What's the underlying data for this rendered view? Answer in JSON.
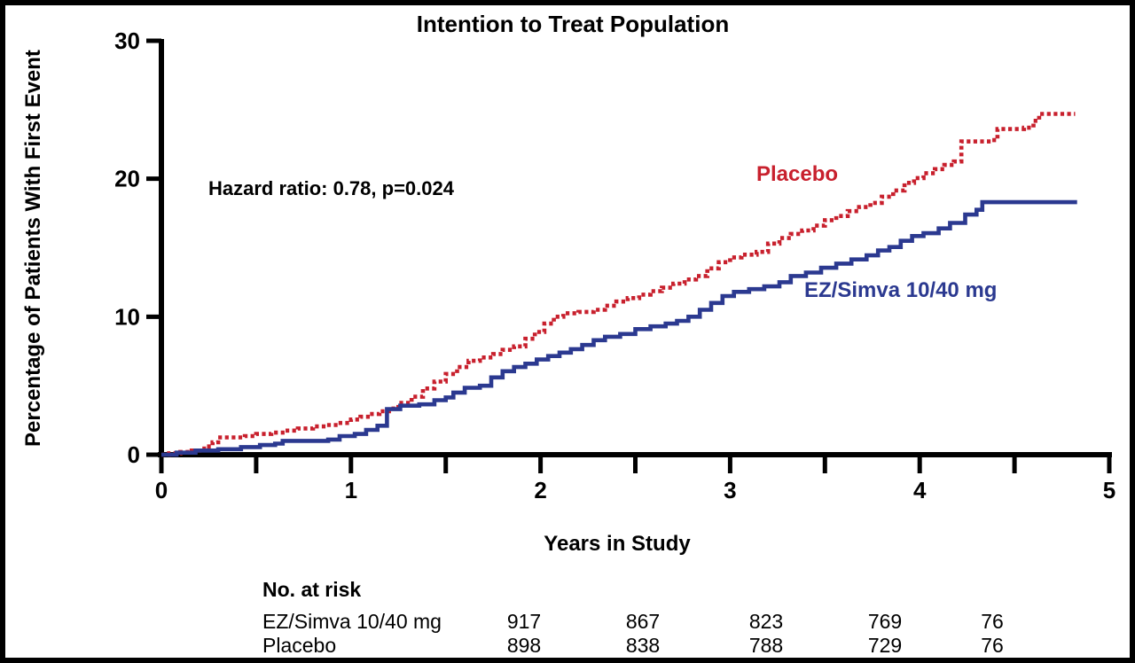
{
  "title": "Intention to Treat Population",
  "annotations": {
    "hazard_ratio": "Hazard ratio: 0.78, p=0.024"
  },
  "colors": {
    "placebo": "#C8202D",
    "ez_simva": "#2B3990",
    "axis": "#000000"
  },
  "chart_data": {
    "type": "line",
    "subtype": "kaplan-meier-step-curves",
    "title": "Intention to Treat Population",
    "xlabel": "Years in Study",
    "ylabel": "Percentage of Patients With First Event",
    "xlim": [
      0,
      5
    ],
    "ylim": [
      0,
      30
    ],
    "xticks_minor": [
      0,
      0.5,
      1,
      1.5,
      2,
      2.5,
      3,
      3.5,
      4,
      4.5,
      5
    ],
    "xtick_labels": [
      "0",
      "1",
      "2",
      "3",
      "4",
      "5"
    ],
    "xtick_label_values": [
      0,
      1,
      2,
      3,
      4,
      5
    ],
    "ytick_labels": [
      "0",
      "10",
      "20",
      "30"
    ],
    "ytick_values": [
      0,
      10,
      20,
      30
    ],
    "grid": false,
    "legend_position": "inline-curve-labels",
    "annotation": "Hazard ratio: 0.78, p=0.024",
    "series": [
      {
        "name": "Placebo",
        "color": "#C8202D",
        "line_style": "dotted",
        "points": [
          [
            0,
            0
          ],
          [
            0.04,
            0.1
          ],
          [
            0.1,
            0.2
          ],
          [
            0.16,
            0.3
          ],
          [
            0.2,
            0.45
          ],
          [
            0.24,
            0.6
          ],
          [
            0.27,
            0.9
          ],
          [
            0.3,
            1.25
          ],
          [
            0.44,
            1.35
          ],
          [
            0.5,
            1.5
          ],
          [
            0.58,
            1.6
          ],
          [
            0.65,
            1.75
          ],
          [
            0.72,
            1.9
          ],
          [
            0.8,
            2.05
          ],
          [
            0.87,
            2.15
          ],
          [
            0.93,
            2.3
          ],
          [
            1.0,
            2.55
          ],
          [
            1.05,
            2.75
          ],
          [
            1.1,
            2.95
          ],
          [
            1.15,
            3.15
          ],
          [
            1.2,
            3.35
          ],
          [
            1.25,
            3.75
          ],
          [
            1.32,
            4.2
          ],
          [
            1.38,
            4.8
          ],
          [
            1.44,
            5.3
          ],
          [
            1.5,
            5.85
          ],
          [
            1.56,
            6.35
          ],
          [
            1.62,
            6.8
          ],
          [
            1.68,
            7.05
          ],
          [
            1.75,
            7.3
          ],
          [
            1.8,
            7.6
          ],
          [
            1.86,
            7.85
          ],
          [
            1.92,
            8.4
          ],
          [
            1.97,
            8.9
          ],
          [
            2.02,
            9.5
          ],
          [
            2.07,
            10.0
          ],
          [
            2.12,
            10.25
          ],
          [
            2.2,
            10.35
          ],
          [
            2.28,
            10.5
          ],
          [
            2.34,
            10.8
          ],
          [
            2.4,
            11.1
          ],
          [
            2.46,
            11.35
          ],
          [
            2.52,
            11.6
          ],
          [
            2.58,
            11.85
          ],
          [
            2.64,
            12.1
          ],
          [
            2.7,
            12.4
          ],
          [
            2.76,
            12.7
          ],
          [
            2.82,
            12.95
          ],
          [
            2.88,
            13.5
          ],
          [
            2.94,
            13.95
          ],
          [
            3.0,
            14.3
          ],
          [
            3.06,
            14.5
          ],
          [
            3.14,
            14.7
          ],
          [
            3.2,
            15.3
          ],
          [
            3.26,
            15.7
          ],
          [
            3.32,
            16.0
          ],
          [
            3.38,
            16.25
          ],
          [
            3.44,
            16.6
          ],
          [
            3.5,
            17.0
          ],
          [
            3.56,
            17.3
          ],
          [
            3.62,
            17.65
          ],
          [
            3.68,
            17.95
          ],
          [
            3.74,
            18.25
          ],
          [
            3.8,
            18.7
          ],
          [
            3.86,
            19.15
          ],
          [
            3.92,
            19.7
          ],
          [
            3.97,
            20.05
          ],
          [
            4.02,
            20.4
          ],
          [
            4.08,
            20.7
          ],
          [
            4.13,
            21.0
          ],
          [
            4.18,
            21.25
          ],
          [
            4.22,
            22.7
          ],
          [
            4.38,
            22.8
          ],
          [
            4.41,
            23.6
          ],
          [
            4.55,
            23.7
          ],
          [
            4.6,
            24.2
          ],
          [
            4.63,
            24.7
          ],
          [
            4.82,
            24.7
          ]
        ]
      },
      {
        "name": "EZ/Simva 10/40 mg",
        "color": "#2B3990",
        "line_style": "solid",
        "points": [
          [
            0,
            0
          ],
          [
            0.08,
            0.15
          ],
          [
            0.18,
            0.3
          ],
          [
            0.3,
            0.4
          ],
          [
            0.42,
            0.55
          ],
          [
            0.52,
            0.7
          ],
          [
            0.6,
            0.8
          ],
          [
            0.64,
            1.0
          ],
          [
            0.88,
            1.1
          ],
          [
            0.94,
            1.35
          ],
          [
            1.02,
            1.5
          ],
          [
            1.08,
            1.8
          ],
          [
            1.14,
            2.1
          ],
          [
            1.19,
            3.3
          ],
          [
            1.26,
            3.55
          ],
          [
            1.36,
            3.65
          ],
          [
            1.44,
            3.95
          ],
          [
            1.5,
            4.15
          ],
          [
            1.54,
            4.5
          ],
          [
            1.6,
            4.85
          ],
          [
            1.68,
            5.0
          ],
          [
            1.74,
            5.6
          ],
          [
            1.8,
            6.05
          ],
          [
            1.86,
            6.35
          ],
          [
            1.92,
            6.6
          ],
          [
            1.98,
            6.9
          ],
          [
            2.04,
            7.15
          ],
          [
            2.1,
            7.4
          ],
          [
            2.16,
            7.65
          ],
          [
            2.22,
            7.95
          ],
          [
            2.28,
            8.3
          ],
          [
            2.34,
            8.55
          ],
          [
            2.42,
            8.75
          ],
          [
            2.5,
            9.1
          ],
          [
            2.58,
            9.3
          ],
          [
            2.66,
            9.5
          ],
          [
            2.72,
            9.7
          ],
          [
            2.78,
            10.0
          ],
          [
            2.84,
            10.5
          ],
          [
            2.9,
            11.0
          ],
          [
            2.96,
            11.5
          ],
          [
            3.02,
            11.8
          ],
          [
            3.1,
            12.0
          ],
          [
            3.18,
            12.2
          ],
          [
            3.26,
            12.5
          ],
          [
            3.32,
            12.95
          ],
          [
            3.4,
            13.2
          ],
          [
            3.48,
            13.55
          ],
          [
            3.56,
            13.85
          ],
          [
            3.64,
            14.15
          ],
          [
            3.72,
            14.45
          ],
          [
            3.78,
            14.8
          ],
          [
            3.84,
            15.05
          ],
          [
            3.9,
            15.5
          ],
          [
            3.96,
            15.85
          ],
          [
            4.02,
            16.05
          ],
          [
            4.1,
            16.4
          ],
          [
            4.16,
            16.8
          ],
          [
            4.24,
            17.4
          ],
          [
            4.3,
            17.75
          ],
          [
            4.33,
            18.3
          ],
          [
            4.83,
            18.3
          ]
        ]
      }
    ],
    "curve_labels": [
      {
        "text": "Placebo",
        "color": "#C8202D"
      },
      {
        "text": "EZ/Simva 10/40 mg",
        "color": "#2B3990"
      }
    ]
  },
  "risk_table": {
    "header": "No. at risk",
    "rows": [
      {
        "label": "EZ/Simva 10/40 mg",
        "values": [
          "917",
          "867",
          "823",
          "769",
          "76"
        ]
      },
      {
        "label": "Placebo",
        "values": [
          "898",
          "838",
          "788",
          "729",
          "76"
        ]
      }
    ]
  }
}
